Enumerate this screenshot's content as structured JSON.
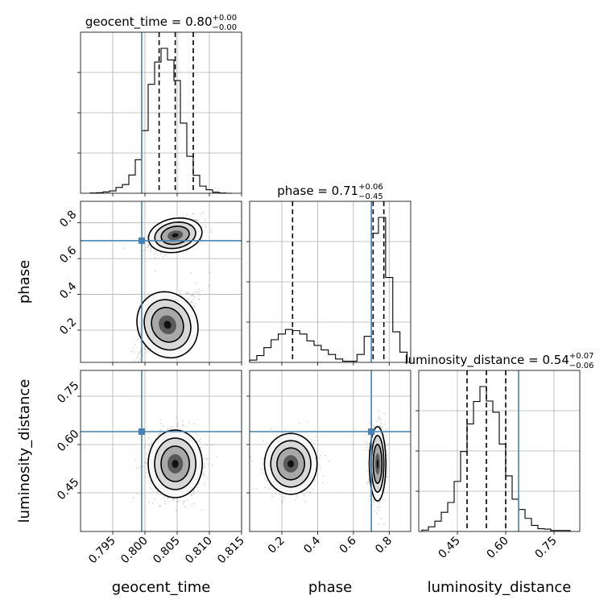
{
  "chart_data": {
    "type": "corner",
    "parameters": [
      {
        "name": "geocent_time",
        "axis_label": "geocent_time",
        "range": [
          0.79,
          0.815
        ],
        "ticks": [
          0.795,
          0.8,
          0.805,
          0.81,
          0.815
        ],
        "tick_labels": [
          "0.795",
          "0.800",
          "0.805",
          "0.810",
          "0.815"
        ],
        "title": {
          "prefix": "geocent_time = 0.80",
          "upper": "+0.00",
          "lower": "−0.00"
        },
        "truth": 0.7995,
        "quantiles": [
          0.8022,
          0.8047,
          0.8075
        ],
        "histogram": {
          "edges": [
            0.7915,
            0.7925,
            0.7935,
            0.7945,
            0.7955,
            0.7965,
            0.7975,
            0.7985,
            0.7995,
            0.8005,
            0.8015,
            0.8025,
            0.8035,
            0.8045,
            0.8055,
            0.8065,
            0.8075,
            0.8085,
            0.8095,
            0.8105,
            0.8115,
            0.8125,
            0.8135
          ],
          "counts": [
            1,
            2,
            5,
            9,
            22,
            33,
            69,
            127,
            237,
            412,
            496,
            548,
            504,
            426,
            265,
            140,
            68,
            27,
            13,
            4,
            1,
            0
          ]
        }
      },
      {
        "name": "phase",
        "axis_label": "phase",
        "range": [
          0.02,
          0.92
        ],
        "ticks": [
          0.2,
          0.4,
          0.6,
          0.8
        ],
        "tick_labels": [
          "0.2",
          "0.4",
          "0.6",
          "0.8"
        ],
        "title": {
          "prefix": "phase = 0.71",
          "upper": "+0.06",
          "lower": "−0.45"
        },
        "truth": 0.7,
        "quantiles": [
          0.26,
          0.71,
          0.77
        ],
        "histogram": {
          "edges": [
            0.02,
            0.06,
            0.1,
            0.14,
            0.18,
            0.22,
            0.26,
            0.3,
            0.34,
            0.38,
            0.42,
            0.46,
            0.5,
            0.54,
            0.58,
            0.62,
            0.66,
            0.7,
            0.74,
            0.78,
            0.82,
            0.86,
            0.9
          ],
          "counts": [
            2,
            6,
            13,
            20,
            25,
            29,
            28,
            25,
            19,
            15,
            11,
            7,
            3,
            1,
            1,
            7,
            23,
            114,
            128,
            75,
            27,
            9
          ]
        }
      },
      {
        "name": "luminosity_distance",
        "axis_label": "luminosity_distance",
        "range": [
          0.33,
          0.83
        ],
        "ticks": [
          0.45,
          0.6,
          0.75
        ],
        "tick_labels": [
          "0.45",
          "0.60",
          "0.75"
        ],
        "title": {
          "prefix": "luminosity_distance = 0.54",
          "upper": "+0.07",
          "lower": "−0.06"
        },
        "truth": 0.64,
        "quantiles": [
          0.48,
          0.54,
          0.6
        ],
        "histogram": {
          "edges": [
            0.34,
            0.36,
            0.38,
            0.4,
            0.42,
            0.44,
            0.46,
            0.48,
            0.5,
            0.52,
            0.54,
            0.56,
            0.58,
            0.6,
            0.62,
            0.64,
            0.66,
            0.68,
            0.7,
            0.72,
            0.74,
            0.76,
            0.78,
            0.8
          ],
          "counts": [
            3,
            10,
            22,
            41,
            62,
            107,
            171,
            230,
            278,
            310,
            279,
            255,
            187,
            119,
            69,
            47,
            28,
            13,
            6,
            5,
            2,
            2,
            2
          ]
        }
      }
    ],
    "grid": true,
    "truth_color": "#4682b4"
  }
}
